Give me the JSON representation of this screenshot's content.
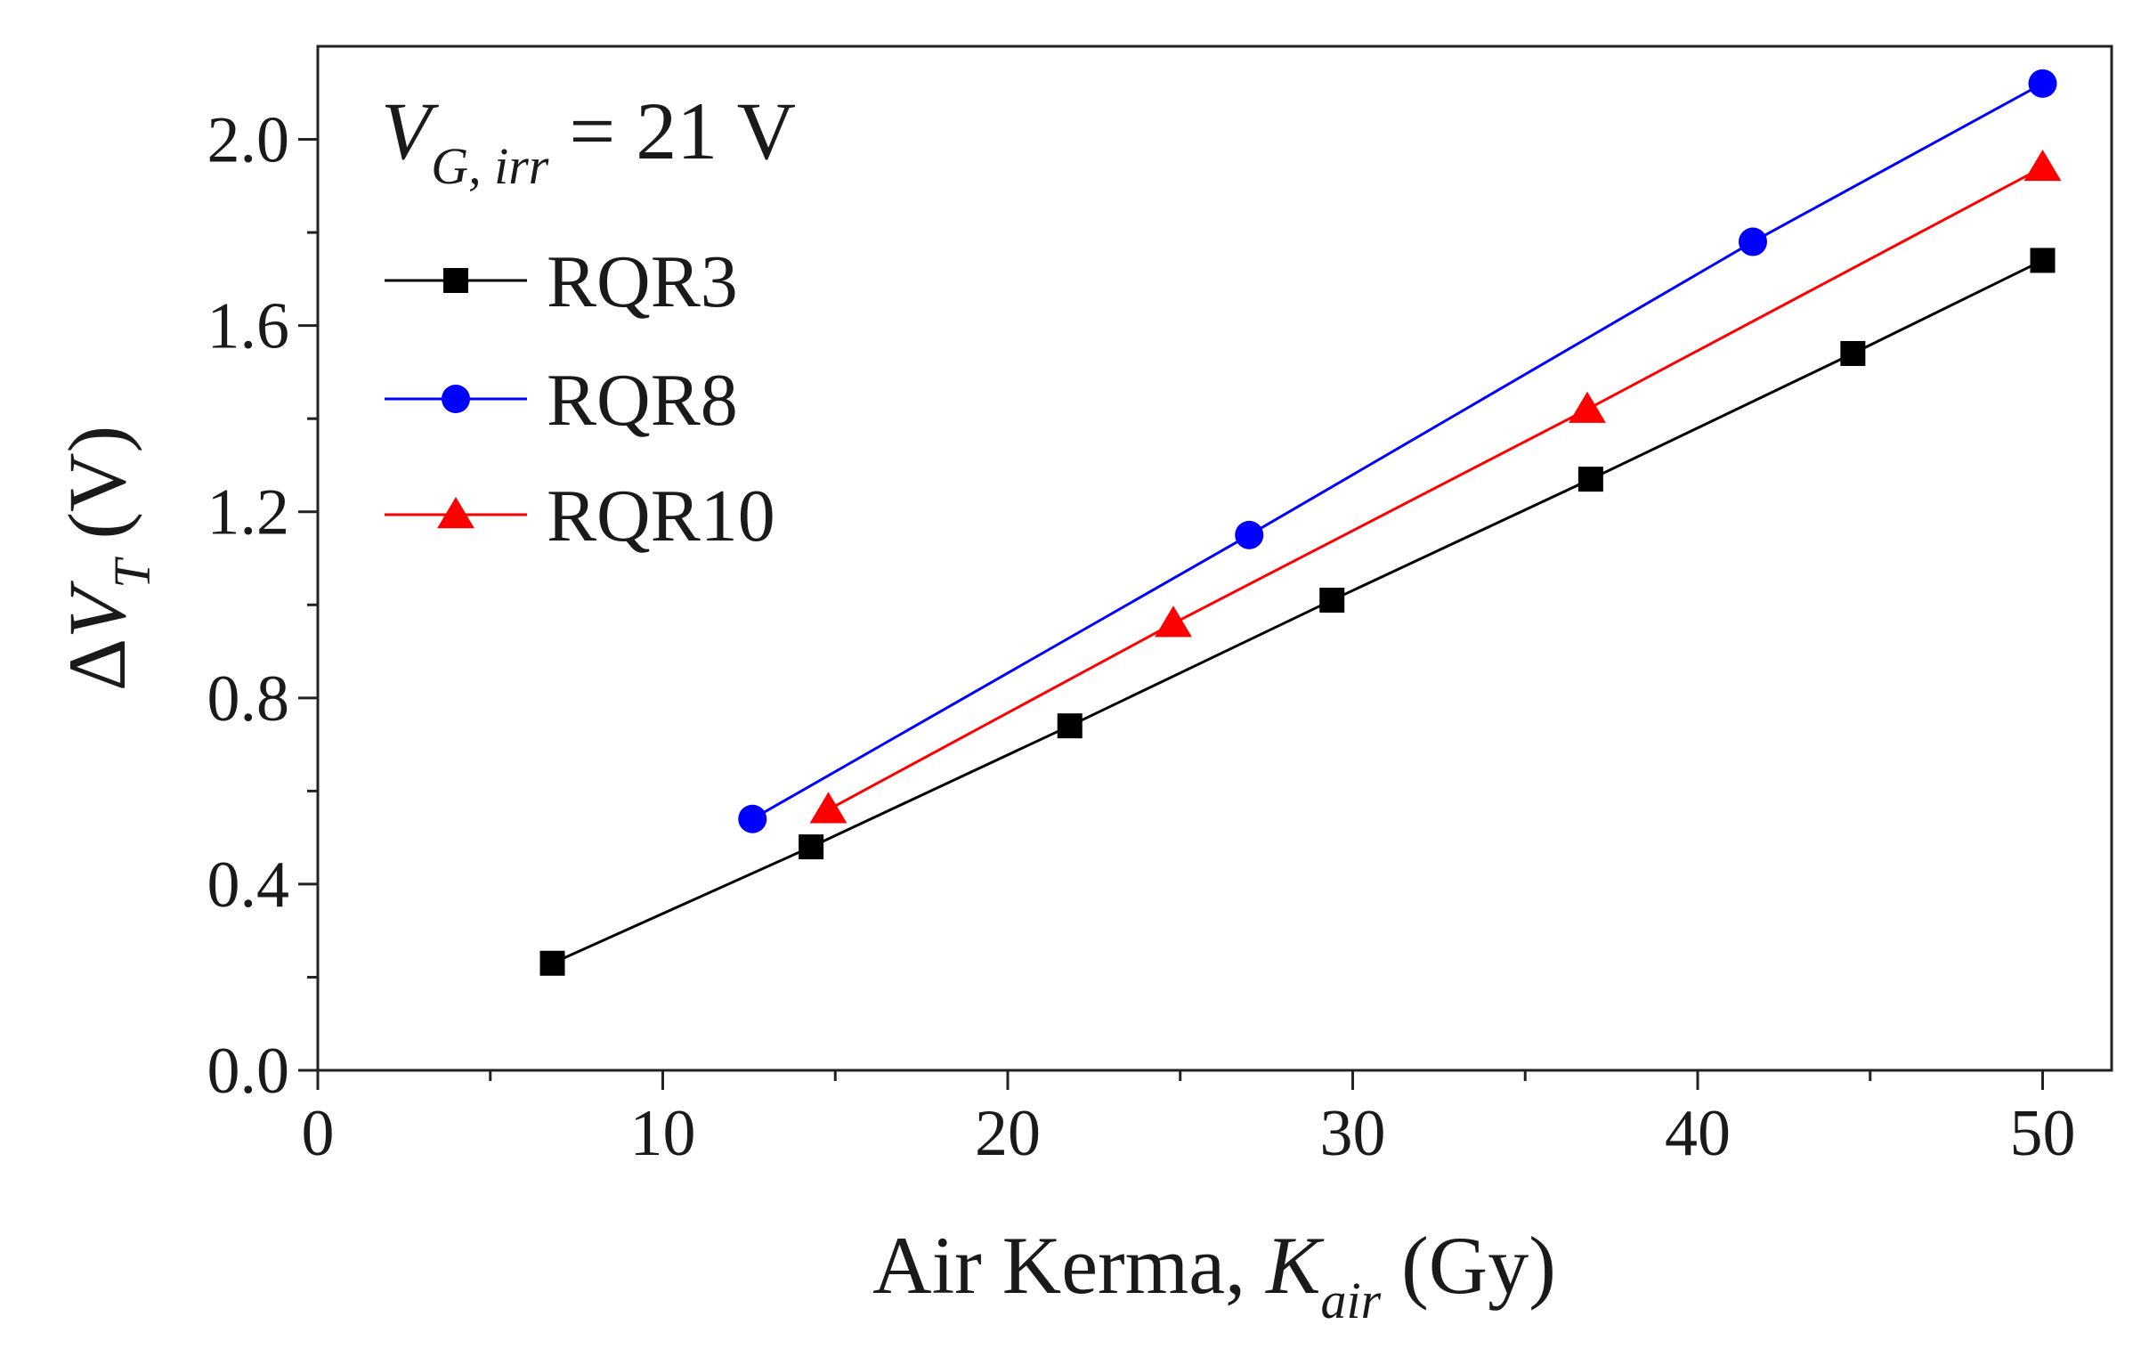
{
  "chart_data": {
    "type": "line",
    "title": "",
    "xlabel": {
      "main": "Air Kerma, ",
      "var": "K",
      "sub": "air",
      "unit": " (Gy)"
    },
    "ylabel": {
      "prefix": "Δ",
      "var": "V",
      "sub": "T",
      "unit": " (V)"
    },
    "xlim": [
      0,
      52
    ],
    "ylim": [
      0,
      2.2
    ],
    "xticks": [
      0,
      10,
      20,
      30,
      40,
      50
    ],
    "xtick_labels": [
      "0",
      "10",
      "20",
      "30",
      "40",
      "50"
    ],
    "yticks": [
      0.0,
      0.4,
      0.8,
      1.2,
      1.6,
      2.0
    ],
    "ytick_labels": [
      "0.0",
      "0.4",
      "0.8",
      "1.2",
      "1.6",
      "2.0"
    ],
    "annotation": {
      "var": "V",
      "sub": "G, irr",
      "rest": " = 21 V"
    },
    "legend_position": "top-left",
    "series": [
      {
        "name": "RQR3",
        "color": "#000000",
        "marker": "square",
        "x": [
          6.8,
          14.3,
          21.8,
          29.4,
          36.9,
          44.5,
          50.0
        ],
        "y": [
          0.23,
          0.48,
          0.74,
          1.01,
          1.27,
          1.54,
          1.74
        ]
      },
      {
        "name": "RQR8",
        "color": "#0000ff",
        "marker": "circle",
        "x": [
          12.6,
          27.0,
          41.6,
          50.0
        ],
        "y": [
          0.54,
          1.15,
          1.78,
          2.12
        ]
      },
      {
        "name": "RQR10",
        "color": "#ff0000",
        "marker": "triangle",
        "x": [
          14.8,
          24.8,
          36.8,
          50.0
        ],
        "y": [
          0.56,
          0.96,
          1.42,
          1.94
        ]
      }
    ]
  }
}
